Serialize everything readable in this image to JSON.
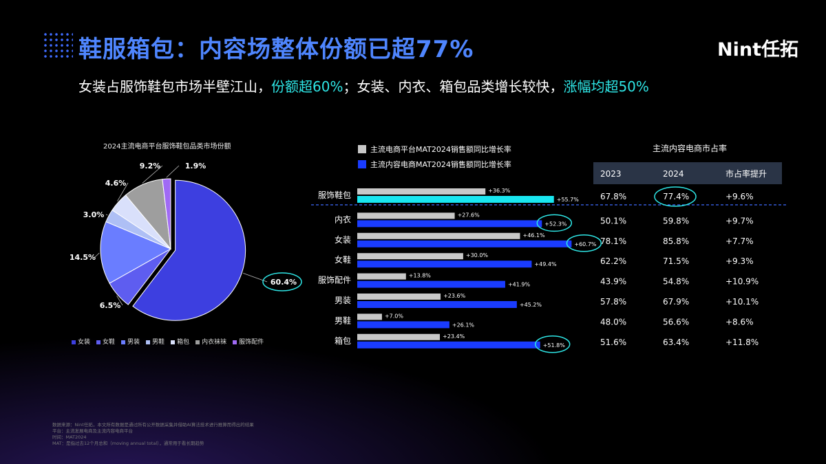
{
  "header": {
    "title": "鞋服箱包：内容场整体份额已超77%",
    "logo": "Nint任拓",
    "subtitle_parts": [
      "女装占服饰鞋包市场半壁江山，",
      "份额超60%",
      "；女装、内衣、箱包品类增长较快，",
      "涨幅均超50%"
    ]
  },
  "colors": {
    "title": "#4f86ff",
    "highlight": "#2ee6e6",
    "gray_bar": "#c8c8c8",
    "blue_bar": "#1a3cff",
    "cyan_bar": "#19e6f0"
  },
  "chart_data": [
    {
      "type": "pie",
      "title": "2024主流电商平台服饰鞋包品类市场份额",
      "labels": [
        "女装",
        "女鞋",
        "男装",
        "男鞋",
        "箱包",
        "内衣袜袜",
        "服饰配件"
      ],
      "values": [
        60.4,
        6.5,
        14.5,
        3.0,
        4.6,
        9.2,
        1.9
      ],
      "value_labels": [
        "60.4%",
        "6.5%",
        "14.5%",
        "3.0%",
        "4.6%",
        "9.2%",
        "1.9%"
      ],
      "colors": [
        "#3d3fe0",
        "#5e5df0",
        "#6a7dff",
        "#aebff5",
        "#d9e0fb",
        "#9e9e9e",
        "#a06af5"
      ],
      "legend_position": "bottom"
    },
    {
      "type": "bar",
      "orientation": "horizontal",
      "categories": [
        "服饰鞋包",
        "内衣",
        "女装",
        "女鞋",
        "服饰配件",
        "男装",
        "男鞋",
        "箱包"
      ],
      "series": [
        {
          "name": "主流电商平台MAT2024销售额同比增长率",
          "values": [
            36.3,
            27.6,
            46.1,
            30.0,
            13.8,
            23.6,
            7.0,
            23.4
          ],
          "labels": [
            "+36.3%",
            "+27.6%",
            "+46.1%",
            "+30.0%",
            "+13.8%",
            "+23.6%",
            "+7.0%",
            "+23.4%"
          ]
        },
        {
          "name": "主流内容电商MAT2024销售额同比增长率",
          "values": [
            55.7,
            52.3,
            60.7,
            49.4,
            41.9,
            45.2,
            26.1,
            51.8
          ],
          "labels": [
            "+55.7%",
            "+52.3%",
            "+60.7%",
            "+49.4%",
            "+41.9%",
            "+45.2%",
            "+26.1%",
            "+51.8%"
          ]
        }
      ],
      "legend_position": "top-left"
    },
    {
      "type": "table",
      "title": "主流内容电商市占率",
      "columns": [
        "2023",
        "2024",
        "市占率提升"
      ],
      "rows": [
        [
          "67.8%",
          "77.4%",
          "+9.6%"
        ],
        [
          "50.1%",
          "59.8%",
          "+9.7%"
        ],
        [
          "78.1%",
          "85.8%",
          "+7.7%"
        ],
        [
          "62.2%",
          "71.5%",
          "+9.3%"
        ],
        [
          "43.9%",
          "54.8%",
          "+10.9%"
        ],
        [
          "57.8%",
          "67.9%",
          "+10.1%"
        ],
        [
          "48.0%",
          "56.6%",
          "+8.6%"
        ],
        [
          "51.6%",
          "63.4%",
          "+11.8%"
        ]
      ]
    }
  ],
  "footnote": [
    "数据来源：Nint任拓，本文所有数据是通过所有公开数据采集并借助AI算法技术进行推算而得出的结果",
    "平台：主流发展电商及主流内容电商平台",
    "时间：MAT2024",
    "MAT：是指过去12个月总和（moving annual total），通常用于看长期趋势"
  ]
}
